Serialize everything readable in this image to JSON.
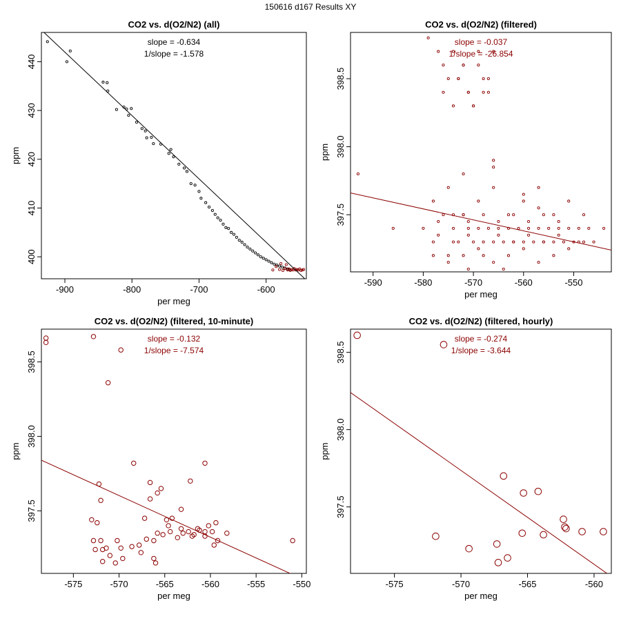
{
  "page_title": "150616   d167   Results XY",
  "colors": {
    "all_points": "#000000",
    "filtered": "#8b0000",
    "axis": "#000000"
  },
  "chart_data": [
    {
      "type": "scatter",
      "title": "CO2 vs. d(O2/N2) (all)",
      "xlabel": "per meg",
      "ylabel": "ppm",
      "xlim": [
        -935,
        -540
      ],
      "ylim": [
        395.5,
        446
      ],
      "xticks": [
        -900,
        -800,
        -700,
        -600
      ],
      "yticks": [
        400,
        410,
        420,
        430,
        440
      ],
      "annotations": [
        "slope = -0.634",
        "1/slope = -1.578"
      ],
      "fit_line": {
        "x": [
          -935,
          -540
        ],
        "y": [
          446.5,
          395.2
        ],
        "color": "#000000"
      },
      "series": [
        {
          "name": "all",
          "color": "#000000",
          "x": [
            -926,
            -897,
            -892,
            -843,
            -837,
            -836,
            -823,
            -812,
            -808,
            -805,
            -801,
            -793,
            -785,
            -780,
            -778,
            -771,
            -768,
            -757,
            -745,
            -742,
            -738,
            -730,
            -722,
            -718,
            -712,
            -706,
            -700,
            -697,
            -690,
            -685,
            -680,
            -676,
            -672,
            -668,
            -664,
            -660,
            -656,
            -652,
            -648,
            -644,
            -640,
            -636,
            -632,
            -628,
            -624,
            -620,
            -616,
            -612,
            -608,
            -604,
            -600,
            -596,
            -592,
            -588,
            -584,
            -580,
            -576,
            -572,
            -568,
            -565
          ],
          "y": [
            444.1,
            440.0,
            442.2,
            435.8,
            435.7,
            434.0,
            430.2,
            430.7,
            430.3,
            429.0,
            430.4,
            427.6,
            426.3,
            425.8,
            424.4,
            424.5,
            423.2,
            423.1,
            421.2,
            422.0,
            420.5,
            419.0,
            418.2,
            417.5,
            415.0,
            414.7,
            413.4,
            412.0,
            411.1,
            410.2,
            409.5,
            408.7,
            408.0,
            407.5,
            406.7,
            406.0,
            405.8,
            405.0,
            404.6,
            404.0,
            403.4,
            403.0,
            402.5,
            402.0,
            401.6,
            401.2,
            400.8,
            400.4,
            400.0,
            399.7,
            399.4,
            399.1,
            398.8,
            398.5,
            398.3,
            398.1,
            397.9,
            397.7,
            397.5,
            397.4
          ]
        },
        {
          "name": "filtered",
          "color": "#8b0000",
          "x": [
            -590,
            -585,
            -580,
            -578,
            -575,
            -572,
            -570,
            -568,
            -566,
            -564,
            -562,
            -560,
            -558,
            -556,
            -554,
            -552,
            -550,
            -548,
            -546,
            -544
          ],
          "y": [
            397.3,
            398.0,
            397.4,
            398.6,
            397.2,
            397.6,
            398.4,
            397.3,
            397.5,
            397.2,
            397.4,
            397.3,
            397.6,
            397.3,
            397.4,
            397.3,
            397.5,
            397.2,
            397.3,
            397.4
          ]
        }
      ]
    },
    {
      "type": "scatter",
      "title": "CO2 vs. d(O2/N2) (filtered)",
      "xlabel": "per meg",
      "ylabel": "ppm",
      "xlim": [
        -594.5,
        -542.5
      ],
      "ylim": [
        397.08,
        398.84
      ],
      "xticks": [
        -590,
        -580,
        -570,
        -560,
        -550
      ],
      "yticks": [
        397.5,
        398.0,
        398.5
      ],
      "annotations": [
        "slope = -0.037",
        "1/slope = -26.854"
      ],
      "fit_line": {
        "x": [
          -594.5,
          -542.5
        ],
        "y": [
          397.66,
          397.24
        ],
        "color": "#8b0000"
      },
      "series": [
        {
          "name": "filtered",
          "color": "#8b0000",
          "x": [
            -579,
            -577,
            -576,
            -574,
            -573,
            -572,
            -571,
            -570,
            -569,
            -568,
            -567,
            -566,
            -576,
            -575,
            -574,
            -573,
            -572,
            -571,
            -570,
            -569,
            -568,
            -567,
            -593,
            -586,
            -580,
            -578,
            -576,
            -575,
            -574,
            -573,
            -572,
            -571,
            -570,
            -569,
            -568,
            -567,
            -566,
            -565,
            -564,
            -563,
            -562,
            -561,
            -560,
            -559,
            -558,
            -557,
            -556,
            -555,
            -554,
            -553,
            -552,
            -551,
            -550,
            -549,
            -548,
            -547,
            -546,
            -544,
            -578,
            -575,
            -572,
            -569,
            -566,
            -563,
            -560,
            -557,
            -554,
            -551,
            -548,
            -578,
            -575,
            -572,
            -569,
            -566,
            -563,
            -560,
            -557,
            -554,
            -551,
            -577,
            -574,
            -571,
            -568,
            -565,
            -562,
            -559,
            -556,
            -553,
            -577,
            -574,
            -571,
            -568,
            -565,
            -562,
            -559,
            -556,
            -553,
            -572,
            -566,
            -560,
            -566,
            -571,
            -557,
            -564,
            -549
          ],
          "y": [
            398.8,
            398.7,
            398.6,
            398.7,
            398.5,
            398.6,
            398.4,
            398.3,
            398.6,
            398.4,
            398.5,
            398.7,
            398.4,
            398.5,
            398.3,
            398.5,
            398.6,
            398.4,
            398.3,
            398.7,
            398.5,
            398.4,
            397.8,
            397.4,
            397.4,
            397.3,
            397.5,
            397.2,
            397.4,
            397.3,
            397.5,
            397.4,
            397.3,
            397.4,
            397.2,
            397.4,
            397.3,
            397.4,
            397.3,
            397.4,
            397.3,
            397.4,
            397.3,
            397.4,
            397.3,
            397.4,
            397.3,
            397.4,
            397.3,
            397.4,
            397.3,
            397.4,
            397.3,
            397.4,
            397.3,
            397.4,
            397.3,
            397.4,
            397.6,
            397.7,
            397.5,
            397.6,
            397.7,
            397.5,
            397.6,
            397.7,
            397.5,
            397.6,
            397.5,
            397.2,
            397.15,
            397.2,
            397.25,
            397.15,
            397.2,
            397.25,
            397.15,
            397.2,
            397.25,
            397.35,
            397.3,
            397.35,
            397.3,
            397.35,
            397.3,
            397.35,
            397.3,
            397.35,
            397.45,
            397.5,
            397.45,
            397.5,
            397.45,
            397.5,
            397.45,
            397.5,
            397.45,
            397.8,
            397.85,
            397.65,
            397.9,
            397.1,
            397.55,
            397.1,
            397.3
          ]
        }
      ]
    },
    {
      "type": "scatter",
      "title": "CO2 vs. d(O2/N2) (filtered, 10-minute)",
      "xlabel": "per meg",
      "ylabel": "ppm",
      "xlim": [
        -578.5,
        -549.5
      ],
      "ylim": [
        397.08,
        398.72
      ],
      "xticks": [
        -575,
        -570,
        -565,
        -560,
        -555,
        -550
      ],
      "yticks": [
        397.5,
        398.0,
        398.5
      ],
      "annotations": [
        "slope = -0.132",
        "1/slope = -7.574"
      ],
      "fit_line": {
        "x": [
          -578.5,
          -549.5
        ],
        "y": [
          397.84,
          397.03
        ],
        "color": "#8b0000"
      },
      "series": [
        {
          "name": "10-minute",
          "color": "#8b0000",
          "x": [
            -578,
            -578,
            -572.8,
            -569.8,
            -571.2,
            -568.4,
            -551,
            -560.6,
            -572.2,
            -572,
            -566.6,
            -566.6,
            -565.8,
            -565.4,
            -562.2,
            -563.2,
            -564.2,
            -573,
            -572.4,
            -567.2,
            -564.8,
            -561.4,
            -560.2,
            -559.4,
            -558.2,
            -572.8,
            -571.8,
            -570.2,
            -568.6,
            -567.6,
            -566.2,
            -565.2,
            -564.4,
            -563.6,
            -563,
            -562.4,
            -561.8,
            -561.2,
            -560.6,
            -559.8,
            -559.2,
            -572,
            -571.4,
            -569.8,
            -567.8,
            -567,
            -565.8,
            -564.6,
            -563.2,
            -562,
            -560.6,
            -559.6,
            -572.6,
            -571.8,
            -571,
            -570.4,
            -569.6,
            -566.2,
            -566
          ],
          "y": [
            398.66,
            398.63,
            398.67,
            398.58,
            398.36,
            397.82,
            397.3,
            397.82,
            397.68,
            397.57,
            397.69,
            397.58,
            397.62,
            397.65,
            397.7,
            397.51,
            397.45,
            397.44,
            397.42,
            397.45,
            397.44,
            397.38,
            397.4,
            397.42,
            397.35,
            397.3,
            397.24,
            397.3,
            397.26,
            397.22,
            397.3,
            397.34,
            397.36,
            397.32,
            397.35,
            397.36,
            397.34,
            397.37,
            397.33,
            397.36,
            397.3,
            397.3,
            397.25,
            397.25,
            397.27,
            397.31,
            397.35,
            397.4,
            397.38,
            397.33,
            397.36,
            397.27,
            397.24,
            397.16,
            397.2,
            397.15,
            397.18,
            397.18,
            397.15
          ]
        }
      ]
    },
    {
      "type": "scatter",
      "title": "CO2 vs. d(O2/N2) (filtered, hourly)",
      "xlabel": "per meg",
      "ylabel": "ppm",
      "xlim": [
        -578.3,
        -558.7
      ],
      "ylim": [
        397.07,
        398.65
      ],
      "xticks": [
        -575,
        -570,
        -565,
        -560
      ],
      "yticks": [
        397.5,
        398.0,
        398.5
      ],
      "annotations": [
        "slope = -0.274",
        "1/slope = -3.644"
      ],
      "fit_line": {
        "x": [
          -578.3,
          -558.7
        ],
        "y": [
          398.24,
          397.05
        ],
        "color": "#8b0000"
      },
      "series": [
        {
          "name": "hourly",
          "color": "#8b0000",
          "x": [
            -577.8,
            -571.3,
            -566.8,
            -565.3,
            -564.2,
            -562.3,
            -562.2,
            -562.1,
            -563.8,
            -565.4,
            -560.9,
            -559.3,
            -571.9,
            -569.4,
            -567.3,
            -566.5,
            -567.2
          ],
          "y": [
            398.61,
            398.55,
            397.7,
            397.59,
            397.6,
            397.42,
            397.37,
            397.36,
            397.32,
            397.33,
            397.34,
            397.34,
            397.31,
            397.23,
            397.26,
            397.17,
            397.14
          ]
        }
      ]
    }
  ]
}
